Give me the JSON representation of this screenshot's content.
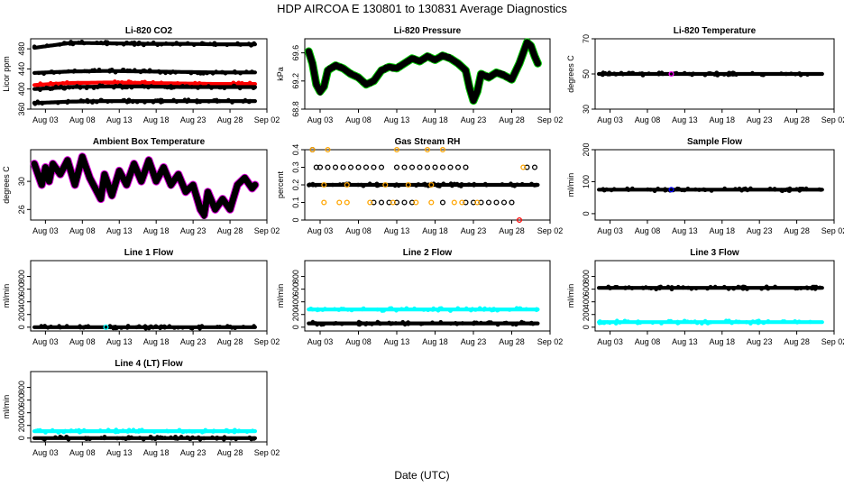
{
  "figure": {
    "title": "HDP    AIRCOA E    130801 to 130831    Average Diagnostics",
    "xlabel": "Date (UTC)"
  },
  "x_axis": {
    "range_days": [
      1.0,
      33.0
    ],
    "tick_days": [
      3,
      8,
      13,
      18,
      23,
      28,
      33
    ],
    "tick_labels": [
      "Aug 03",
      "Aug 08",
      "Aug 13",
      "Aug 18",
      "Aug 23",
      "Aug 28",
      "Sep 02"
    ]
  },
  "chart_data": [
    {
      "type": "scatter",
      "title": "Li-820 CO2",
      "ylabel": "Licor ppm",
      "ylim": [
        360,
        500
      ],
      "yticks": [
        360,
        400,
        440,
        480
      ],
      "data_range_days": [
        1.5,
        31.4
      ],
      "series": [
        {
          "color": "#000000",
          "kind": "band",
          "values": [
            482,
            492,
            491,
            490,
            490,
            489,
            489
          ]
        },
        {
          "color": "#000000",
          "kind": "band",
          "values": [
            432,
            435,
            436,
            435,
            434,
            433,
            433
          ]
        },
        {
          "color": "#ff0000",
          "kind": "band",
          "values": [
            408,
            412,
            413,
            412,
            411,
            410,
            410
          ]
        },
        {
          "color": "#000000",
          "kind": "band",
          "values": [
            400,
            404,
            405,
            405,
            404,
            404,
            404
          ]
        },
        {
          "color": "#000000",
          "kind": "band",
          "values": [
            372,
            375,
            376,
            376,
            376,
            376,
            376
          ]
        }
      ]
    },
    {
      "type": "line",
      "title": "Li-820 Pressure",
      "ylabel": "kPa",
      "ylim": [
        68.8,
        69.8
      ],
      "yticks": [
        68.8,
        69.2,
        69.6
      ],
      "data_range_days": [
        1.5,
        31.4
      ],
      "series": [
        {
          "color": "#000000",
          "edge_color": "#00cc00",
          "kind": "trace",
          "x": [
            1.5,
            2.0,
            2.5,
            3.0,
            3.5,
            4.0,
            5.0,
            6.0,
            7.0,
            8.0,
            9.0,
            10.0,
            11.0,
            12.0,
            13.0,
            14.0,
            15.0,
            16.0,
            17.0,
            18.0,
            19.0,
            20.0,
            21.0,
            22.0,
            22.5,
            23.0,
            23.5,
            24.0,
            25.0,
            26.0,
            27.0,
            28.0,
            29.0,
            29.5,
            30.0,
            30.5,
            31.0,
            31.4
          ],
          "y": [
            69.62,
            69.45,
            69.15,
            69.05,
            69.12,
            69.35,
            69.42,
            69.38,
            69.3,
            69.25,
            69.15,
            69.2,
            69.35,
            69.4,
            69.38,
            69.45,
            69.52,
            69.48,
            69.55,
            69.5,
            69.56,
            69.52,
            69.45,
            69.35,
            69.1,
            68.92,
            69.05,
            69.3,
            69.25,
            69.32,
            69.28,
            69.22,
            69.45,
            69.6,
            69.75,
            69.7,
            69.55,
            69.45
          ]
        }
      ]
    },
    {
      "type": "scatter",
      "title": "Li-820 Temperature",
      "ylabel": "degrees C",
      "ylim": [
        30,
        70
      ],
      "yticks": [
        30,
        50,
        70
      ],
      "data_range_days": [
        1.5,
        31.4
      ],
      "series": [
        {
          "color": "#000000",
          "kind": "band",
          "values": [
            50,
            50,
            50,
            50,
            50,
            50,
            50
          ]
        },
        {
          "color": "#ff00ff",
          "kind": "point",
          "x": [
            11.2
          ],
          "y": [
            50
          ]
        }
      ]
    },
    {
      "type": "line",
      "title": "Ambient Box Temperature",
      "ylabel": "degrees C",
      "ylim": [
        24.5,
        34.5
      ],
      "yticks": [
        26,
        30
      ],
      "data_range_days": [
        1.5,
        31.4
      ],
      "series": [
        {
          "color": "#000000",
          "edge_color": "#dd00dd",
          "kind": "trace",
          "x": [
            1.5,
            2.5,
            3.0,
            3.5,
            4.0,
            5.0,
            6.0,
            7.0,
            8.0,
            9.0,
            10.0,
            10.5,
            11.0,
            12.0,
            13.0,
            14.0,
            15.0,
            16.0,
            17.0,
            18.0,
            19.0,
            20.0,
            21.0,
            22.0,
            23.0,
            24.0,
            24.5,
            25.0,
            26.0,
            27.0,
            28.0,
            29.0,
            30.0,
            31.0,
            31.4
          ],
          "y": [
            32.5,
            29.5,
            32.0,
            30.0,
            32.5,
            31.0,
            33.0,
            29.5,
            33.5,
            30.5,
            28.5,
            27.5,
            31.0,
            28.0,
            31.5,
            29.5,
            32.5,
            30.0,
            33.0,
            30.0,
            32.0,
            29.5,
            31.0,
            28.5,
            29.5,
            26.0,
            25.2,
            28.5,
            26.0,
            27.5,
            26.0,
            29.5,
            30.5,
            29.0,
            29.5
          ]
        }
      ]
    },
    {
      "type": "scatter",
      "title": "Gas Stream RH",
      "ylabel": "percent",
      "ylim": [
        0.0,
        0.4
      ],
      "yticks": [
        0.0,
        0.1,
        0.2,
        0.3,
        0.4
      ],
      "data_range_days": [
        1.5,
        31.4
      ],
      "series": [
        {
          "color": "#000000",
          "kind": "band",
          "values": [
            0.2,
            0.2,
            0.2,
            0.2,
            0.2,
            0.2,
            0.2
          ]
        },
        {
          "color": "#000000",
          "kind": "points",
          "x": [
            2.0,
            2.5,
            3.0,
            4.0,
            5.0,
            6.0,
            7.0,
            8.0,
            9.0,
            10.0,
            11.0,
            13.0,
            14.0,
            15.0,
            16.0,
            17.0,
            18.0,
            19.0,
            20.0,
            21.0,
            22.0,
            30.0,
            31.0
          ],
          "y": [
            0.4,
            0.3,
            0.3,
            0.3,
            0.3,
            0.3,
            0.3,
            0.3,
            0.3,
            0.3,
            0.3,
            0.3,
            0.3,
            0.3,
            0.3,
            0.3,
            0.3,
            0.3,
            0.3,
            0.3,
            0.3,
            0.3,
            0.3
          ]
        },
        {
          "color": "#000000",
          "kind": "points",
          "x": [
            10.0,
            11.0,
            12.0,
            13.0,
            14.0,
            15.0,
            19.0,
            22.0,
            23.0,
            24.0,
            25.0,
            26.0,
            27.0,
            28.0
          ],
          "y": [
            0.1,
            0.1,
            0.1,
            0.1,
            0.1,
            0.1,
            0.1,
            0.1,
            0.1,
            0.1,
            0.1,
            0.1,
            0.1,
            0.1
          ]
        },
        {
          "color": "#ffa500",
          "kind": "points",
          "x": [
            3.5,
            5.5,
            6.5,
            9.5,
            12.5,
            15.5,
            17.5,
            20.5,
            21.5,
            23.5,
            29.5,
            2.0,
            4.0,
            13.0,
            17.0,
            19.0,
            3.5,
            6.5,
            11.5,
            14.5,
            17.5
          ],
          "y": [
            0.1,
            0.1,
            0.1,
            0.1,
            0.1,
            0.1,
            0.1,
            0.1,
            0.1,
            0.1,
            0.3,
            0.4,
            0.4,
            0.4,
            0.4,
            0.4,
            0.2,
            0.2,
            0.2,
            0.2,
            0.2
          ]
        },
        {
          "color": "#ff0000",
          "kind": "points",
          "x": [
            29.0
          ],
          "y": [
            0.0
          ]
        }
      ]
    },
    {
      "type": "scatter",
      "title": "Sample Flow",
      "ylabel": "ml/min",
      "ylim": [
        -20,
        200
      ],
      "yticks": [
        0,
        100,
        200
      ],
      "data_range_days": [
        1.5,
        31.4
      ],
      "series": [
        {
          "color": "#000000",
          "kind": "band",
          "values": [
            75,
            75,
            75,
            75,
            75,
            75,
            75
          ]
        },
        {
          "color": "#0000ff",
          "kind": "point",
          "x": [
            11.2
          ],
          "y": [
            75
          ]
        }
      ]
    },
    {
      "type": "scatter",
      "title": "Line 1 Flow",
      "ylabel": "ml/min",
      "ylim": [
        -60,
        1050
      ],
      "yticks": [
        0,
        200,
        400,
        600,
        800
      ],
      "data_range_days": [
        1.5,
        31.4
      ],
      "series": [
        {
          "color": "#000000",
          "kind": "band",
          "values": [
            0,
            0,
            0,
            0,
            0,
            0,
            0
          ]
        },
        {
          "color": "#00ffff",
          "kind": "point",
          "x": [
            11.2
          ],
          "y": [
            0
          ]
        }
      ]
    },
    {
      "type": "scatter",
      "title": "Line 2 Flow",
      "ylabel": "ml/min",
      "ylim": [
        -60,
        1050
      ],
      "yticks": [
        0,
        200,
        400,
        600,
        800
      ],
      "data_range_days": [
        1.5,
        31.4
      ],
      "series": [
        {
          "color": "#00ffff",
          "kind": "band",
          "values": [
            280,
            280,
            280,
            280,
            280,
            280,
            280
          ]
        },
        {
          "color": "#000000",
          "kind": "band",
          "values": [
            60,
            60,
            60,
            60,
            60,
            60,
            60
          ]
        }
      ]
    },
    {
      "type": "scatter",
      "title": "Line 3 Flow",
      "ylabel": "ml/min",
      "ylim": [
        -60,
        1050
      ],
      "yticks": [
        0,
        200,
        400,
        600,
        800
      ],
      "data_range_days": [
        1.5,
        31.4
      ],
      "series": [
        {
          "color": "#000000",
          "kind": "band",
          "values": [
            620,
            620,
            620,
            620,
            620,
            620,
            620
          ]
        },
        {
          "color": "#00ffff",
          "kind": "band",
          "values": [
            80,
            80,
            80,
            80,
            80,
            80,
            80
          ]
        }
      ]
    },
    {
      "type": "scatter",
      "title": "Line 4 (LT) Flow",
      "ylabel": "ml/min",
      "ylim": [
        -60,
        1050
      ],
      "yticks": [
        0,
        200,
        400,
        600,
        800
      ],
      "data_range_days": [
        1.5,
        31.4
      ],
      "series": [
        {
          "color": "#00ffff",
          "kind": "band",
          "values": [
            110,
            110,
            110,
            110,
            110,
            110,
            110
          ]
        },
        {
          "color": "#000000",
          "kind": "band",
          "values": [
            0,
            0,
            0,
            0,
            0,
            0,
            0
          ]
        }
      ]
    }
  ]
}
